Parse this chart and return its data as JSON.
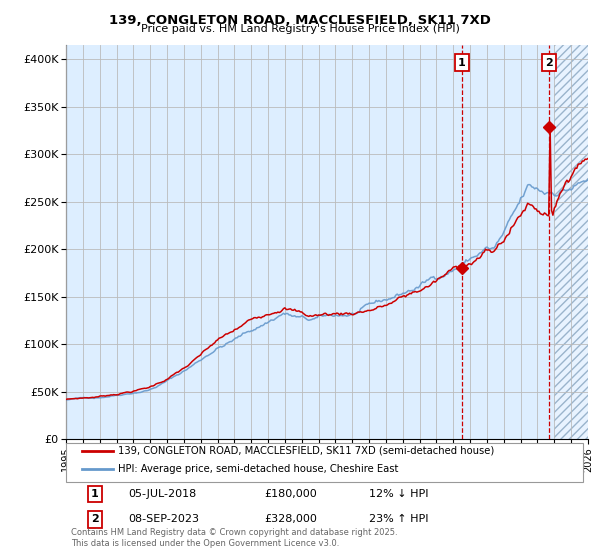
{
  "title_line1": "139, CONGLETON ROAD, MACCLESFIELD, SK11 7XD",
  "title_line2": "Price paid vs. HM Land Registry's House Price Index (HPI)",
  "ylabel_ticks": [
    "£0",
    "£50K",
    "£100K",
    "£150K",
    "£200K",
    "£250K",
    "£300K",
    "£350K",
    "£400K"
  ],
  "y_values": [
    0,
    50000,
    100000,
    150000,
    200000,
    250000,
    300000,
    350000,
    400000
  ],
  "ylim": [
    0,
    415000
  ],
  "xlim_year_start": 1995,
  "xlim_year_end": 2026,
  "x_tick_years": [
    1995,
    1996,
    1997,
    1998,
    1999,
    2000,
    2001,
    2002,
    2003,
    2004,
    2005,
    2006,
    2007,
    2008,
    2009,
    2010,
    2011,
    2012,
    2013,
    2014,
    2015,
    2016,
    2017,
    2018,
    2019,
    2020,
    2021,
    2022,
    2023,
    2024,
    2025,
    2026
  ],
  "red_color": "#cc0000",
  "blue_color": "#6699cc",
  "bg_color": "#ddeeff",
  "grid_color": "#bbbbbb",
  "hatch_start": 2024.0,
  "sale1_date_num": 2018.51,
  "sale1_price": 180000,
  "sale2_date_num": 2023.67,
  "sale2_price": 328000,
  "legend_red_label": "139, CONGLETON ROAD, MACCLESFIELD, SK11 7XD (semi-detached house)",
  "legend_blue_label": "HPI: Average price, semi-detached house, Cheshire East",
  "note1_label": "1",
  "note1_date": "05-JUL-2018",
  "note1_price": "£180,000",
  "note1_hpi": "12% ↓ HPI",
  "note2_label": "2",
  "note2_date": "08-SEP-2023",
  "note2_price": "£328,000",
  "note2_hpi": "23% ↑ HPI",
  "footer": "Contains HM Land Registry data © Crown copyright and database right 2025.\nThis data is licensed under the Open Government Licence v3.0."
}
